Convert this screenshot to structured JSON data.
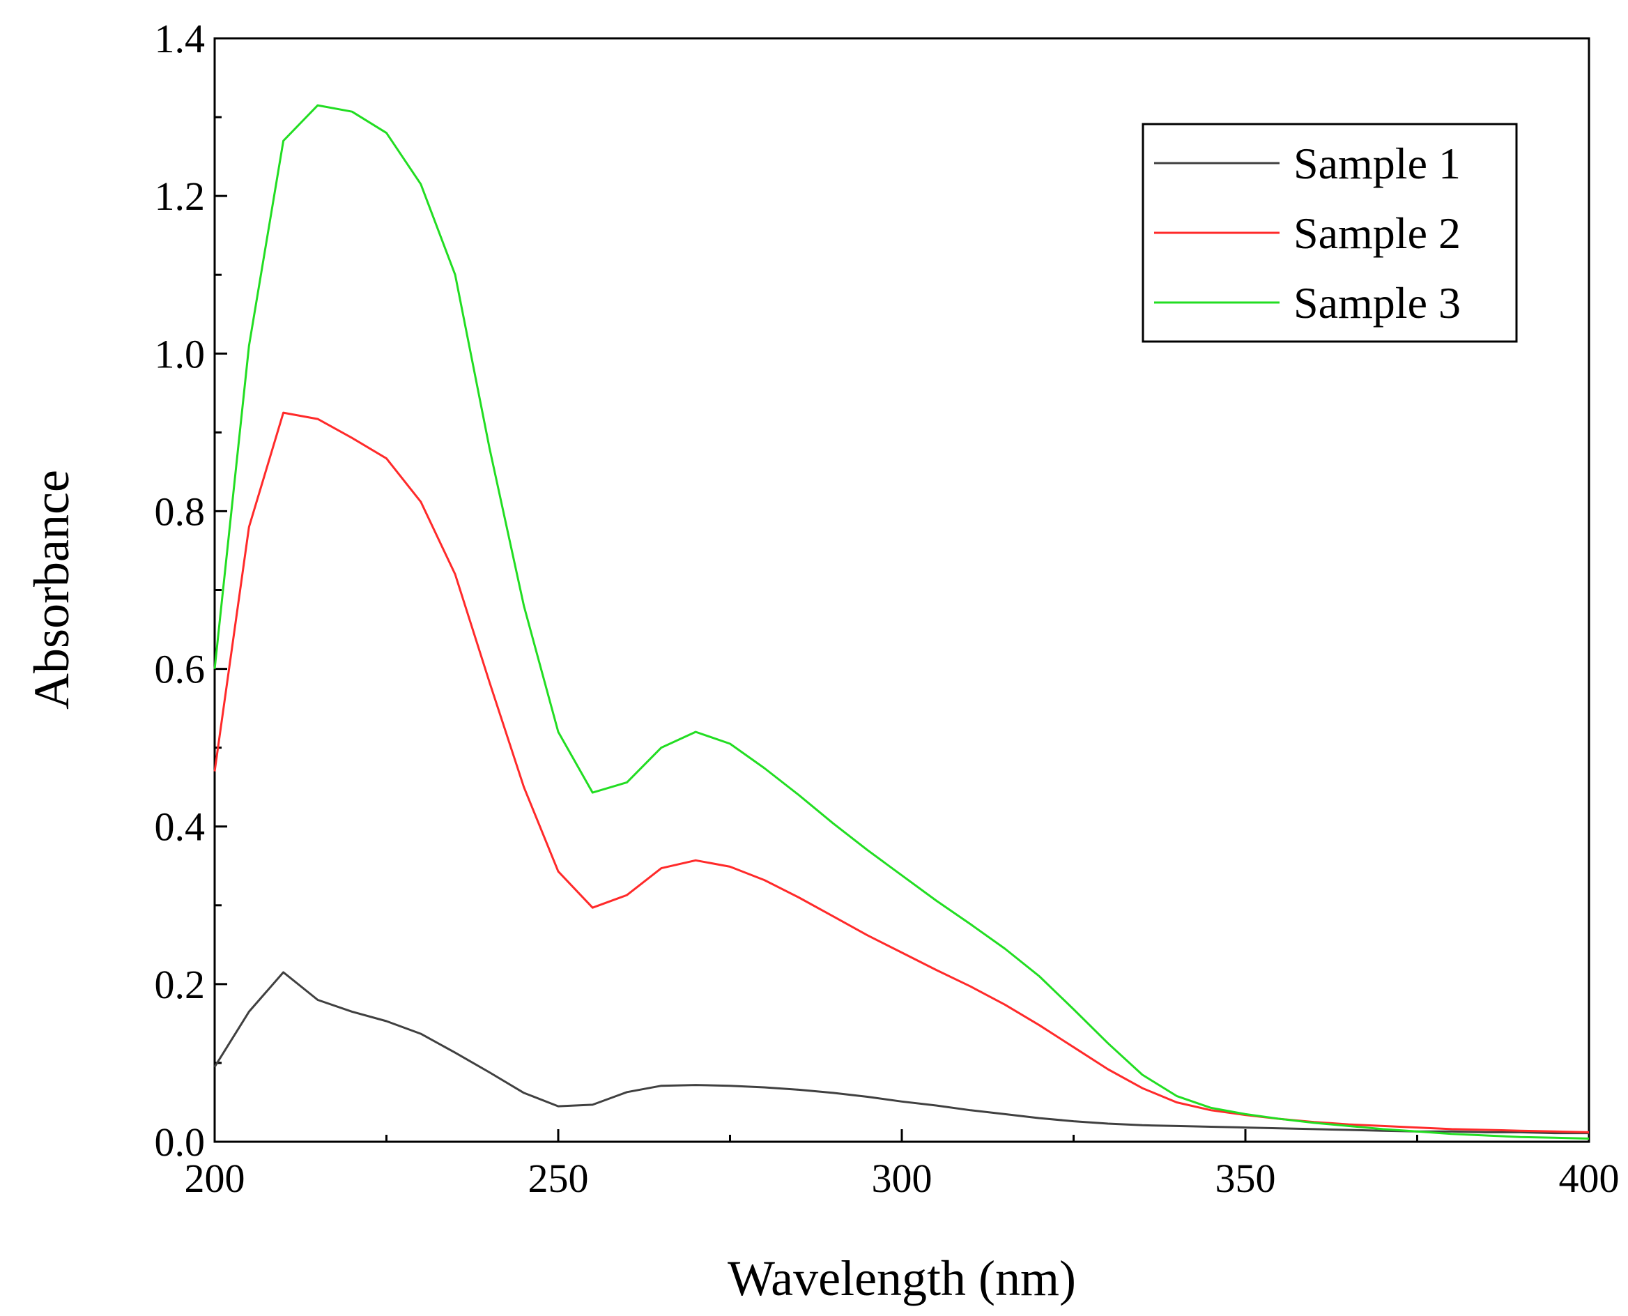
{
  "chart_data": {
    "type": "line",
    "title": "",
    "xlabel": "Wavelength (nm)",
    "ylabel": "Absorbance",
    "xlim": [
      200,
      400
    ],
    "ylim": [
      0.0,
      1.4
    ],
    "xticks": [
      200,
      250,
      300,
      350,
      400
    ],
    "xtick_labels": [
      "200",
      "250",
      "300",
      "350",
      "400"
    ],
    "yticks": [
      0.0,
      0.2,
      0.4,
      0.6,
      0.8,
      1.0,
      1.2,
      1.4
    ],
    "ytick_labels": [
      "0.0",
      "0.2",
      "0.4",
      "0.6",
      "0.8",
      "1.0",
      "1.2",
      "1.4"
    ],
    "grid": false,
    "legend_position": "top-right",
    "x": [
      200,
      205,
      210,
      215,
      220,
      225,
      230,
      235,
      240,
      245,
      250,
      255,
      260,
      265,
      270,
      275,
      280,
      285,
      290,
      295,
      300,
      305,
      310,
      315,
      320,
      325,
      330,
      335,
      340,
      345,
      350,
      355,
      360,
      365,
      370,
      375,
      380,
      385,
      390,
      395,
      400
    ],
    "series": [
      {
        "name": "Sample 1",
        "color": "#404040",
        "values": [
          0.095,
          0.165,
          0.215,
          0.18,
          0.165,
          0.153,
          0.137,
          0.113,
          0.088,
          0.062,
          0.045,
          0.047,
          0.063,
          0.071,
          0.072,
          0.071,
          0.069,
          0.066,
          0.062,
          0.057,
          0.051,
          0.046,
          0.04,
          0.035,
          0.03,
          0.026,
          0.023,
          0.021,
          0.02,
          0.019,
          0.018,
          0.017,
          0.016,
          0.015,
          0.014,
          0.013,
          0.013,
          0.012,
          0.012,
          0.011,
          0.011
        ]
      },
      {
        "name": "Sample 2",
        "color": "#ff2a2a",
        "values": [
          0.47,
          0.78,
          0.925,
          0.917,
          0.893,
          0.867,
          0.812,
          0.72,
          0.583,
          0.45,
          0.343,
          0.297,
          0.313,
          0.347,
          0.357,
          0.349,
          0.332,
          0.31,
          0.286,
          0.262,
          0.24,
          0.218,
          0.197,
          0.174,
          0.148,
          0.12,
          0.092,
          0.068,
          0.05,
          0.04,
          0.034,
          0.029,
          0.025,
          0.022,
          0.02,
          0.018,
          0.016,
          0.015,
          0.014,
          0.013,
          0.012
        ]
      },
      {
        "name": "Sample 3",
        "color": "#22dd22",
        "values": [
          0.6,
          1.01,
          1.27,
          1.315,
          1.307,
          1.28,
          1.215,
          1.1,
          0.88,
          0.68,
          0.52,
          0.443,
          0.456,
          0.5,
          0.52,
          0.505,
          0.474,
          0.44,
          0.404,
          0.37,
          0.338,
          0.306,
          0.276,
          0.245,
          0.21,
          0.168,
          0.125,
          0.085,
          0.058,
          0.043,
          0.035,
          0.029,
          0.024,
          0.02,
          0.016,
          0.013,
          0.01,
          0.008,
          0.006,
          0.005,
          0.004
        ]
      }
    ]
  }
}
